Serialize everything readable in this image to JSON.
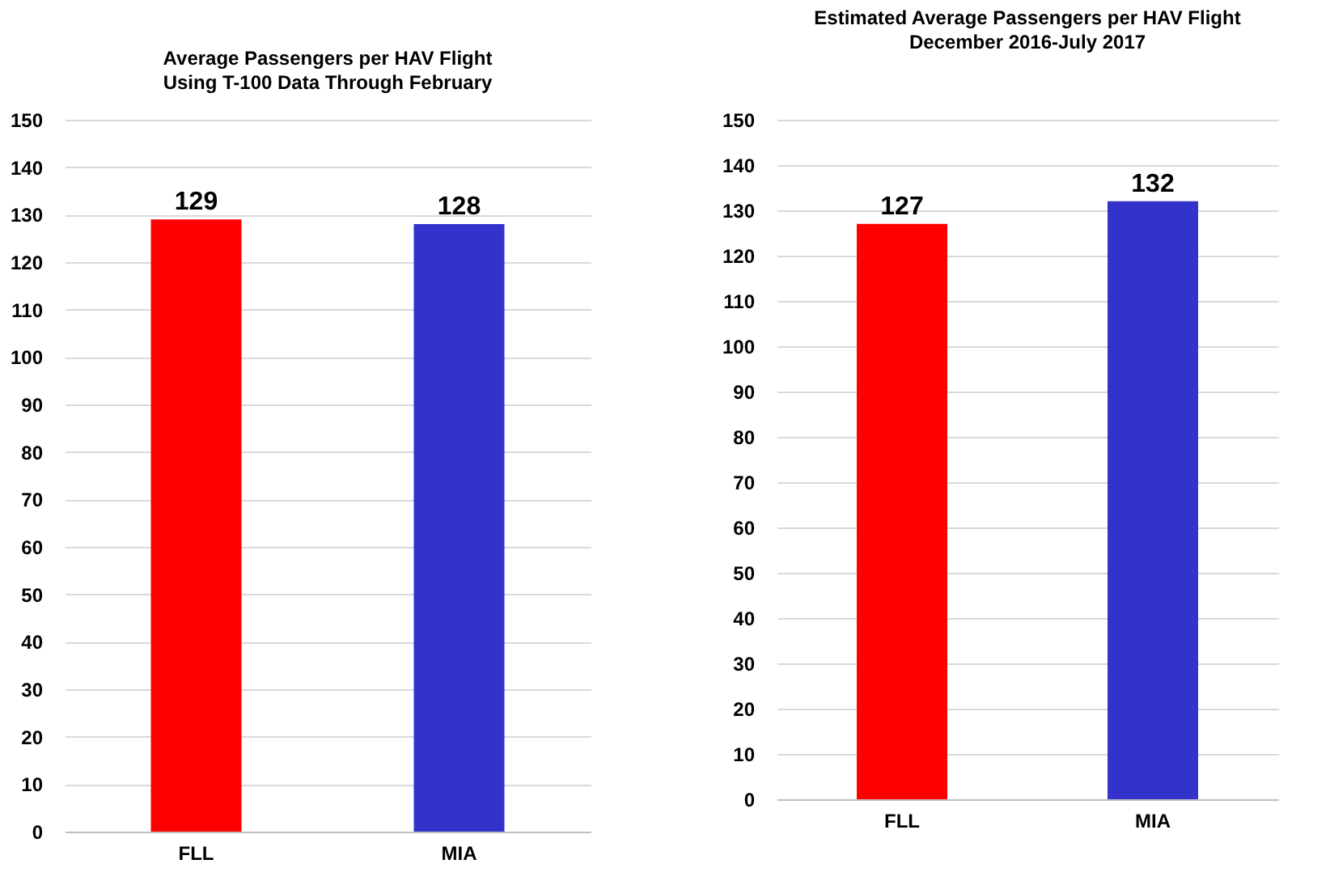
{
  "chart_data": [
    {
      "type": "bar",
      "title": "Average Passengers per HAV Flight",
      "subtitle": "Using T-100 Data Through February",
      "categories": [
        "FLL",
        "MIA"
      ],
      "values": [
        129,
        128
      ],
      "colors": [
        "#ff0000",
        "#3333cc"
      ],
      "ylim": [
        0,
        150
      ],
      "yticks": [
        0,
        10,
        20,
        30,
        40,
        50,
        60,
        70,
        80,
        90,
        100,
        110,
        120,
        130,
        140,
        150
      ],
      "grid": "y",
      "data_labels": true
    },
    {
      "type": "bar",
      "title": "Estimated Average Passengers per HAV Flight",
      "subtitle": "December 2016-July 2017",
      "categories": [
        "FLL",
        "MIA"
      ],
      "values": [
        127,
        132
      ],
      "colors": [
        "#ff0000",
        "#3333cc"
      ],
      "ylim": [
        0,
        150
      ],
      "yticks": [
        0,
        10,
        20,
        30,
        40,
        50,
        60,
        70,
        80,
        90,
        100,
        110,
        120,
        130,
        140,
        150
      ],
      "grid": "y",
      "data_labels": true
    }
  ]
}
